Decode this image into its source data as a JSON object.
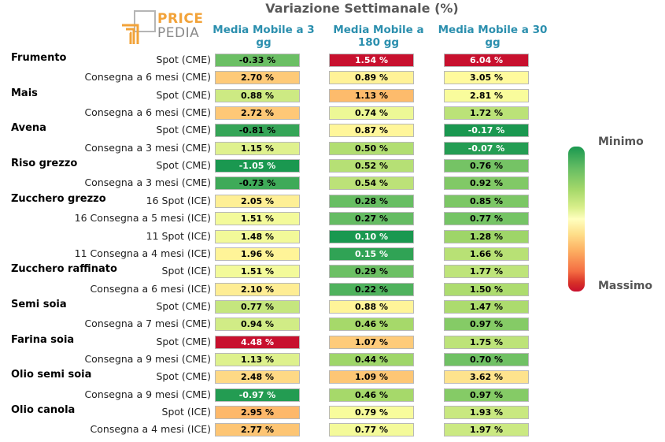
{
  "logo": {
    "line1": "PRICE",
    "line2": "PEDIA"
  },
  "title": "Variazione Settimanale (%)",
  "colors": {
    "accent": "#2b8fae",
    "logo_orange": "#f2a33a",
    "scale_min": "#1a9850",
    "scale_max": "#c8102e"
  },
  "legend": {
    "min_label": "Minimo",
    "max_label": "Massimo"
  },
  "chart_data": {
    "type": "table",
    "columns": [
      "Media Mobile a 3 gg",
      "Media Mobile a 180 gg",
      "Media Mobile a 30 gg"
    ],
    "groups": [
      {
        "name": "Frumento",
        "rows": [
          {
            "label": "Spot (CME)",
            "values": [
              "-0.33 %",
              "1.54 %",
              "6.04 %"
            ]
          },
          {
            "label": "Consegna a 6 mesi (CME)",
            "values": [
              "2.70 %",
              "0.89 %",
              "3.05 %"
            ]
          }
        ]
      },
      {
        "name": "Mais",
        "rows": [
          {
            "label": "Spot (CME)",
            "values": [
              "0.88 %",
              "1.13 %",
              "2.81 %"
            ]
          },
          {
            "label": "Consegna a 6 mesi (CME)",
            "values": [
              "2.72 %",
              "0.74 %",
              "1.72 %"
            ]
          }
        ]
      },
      {
        "name": "Avena",
        "rows": [
          {
            "label": "Spot (CME)",
            "values": [
              "-0.81 %",
              "0.87 %",
              "-0.17 %"
            ]
          },
          {
            "label": "Consegna a 3 mesi (CME)",
            "values": [
              "1.15 %",
              "0.50 %",
              "-0.07 %"
            ]
          }
        ]
      },
      {
        "name": "Riso grezzo",
        "rows": [
          {
            "label": "Spot (CME)",
            "values": [
              "-1.05 %",
              "0.52 %",
              "0.76 %"
            ]
          },
          {
            "label": "Consegna a 3 mesi (CME)",
            "values": [
              "-0.73 %",
              "0.54 %",
              "0.92 %"
            ]
          }
        ]
      },
      {
        "name": "Zucchero grezzo",
        "rows": [
          {
            "label": "16 Spot (ICE)",
            "values": [
              "2.05 %",
              "0.28 %",
              "0.85 %"
            ]
          },
          {
            "label": "16 Consegna a 5 mesi (ICE)",
            "values": [
              "1.51 %",
              "0.27 %",
              "0.77 %"
            ]
          },
          {
            "label": "11 Spot (ICE)",
            "values": [
              "1.48 %",
              "0.10 %",
              "1.28 %"
            ]
          },
          {
            "label": "11 Consegna a 4 mesi (ICE)",
            "values": [
              "1.96 %",
              "0.15 %",
              "1.66 %"
            ]
          }
        ]
      },
      {
        "name": "Zucchero raffinato",
        "rows": [
          {
            "label": "Spot (ICE)",
            "values": [
              "1.51 %",
              "0.29 %",
              "1.77 %"
            ]
          },
          {
            "label": "Consegna a 6 mesi (ICE)",
            "values": [
              "2.10 %",
              "0.22 %",
              "1.50 %"
            ]
          }
        ]
      },
      {
        "name": "Semi soia",
        "rows": [
          {
            "label": "Spot (CME)",
            "values": [
              "0.77 %",
              "0.88 %",
              "1.47 %"
            ]
          },
          {
            "label": "Consegna a 7 mesi (CME)",
            "values": [
              "0.94 %",
              "0.46 %",
              "0.97 %"
            ]
          }
        ]
      },
      {
        "name": "Farina soia",
        "rows": [
          {
            "label": "Spot (CME)",
            "values": [
              "4.48 %",
              "1.07 %",
              "1.75 %"
            ]
          },
          {
            "label": "Consegna a 9 mesi (CME)",
            "values": [
              "1.13 %",
              "0.44 %",
              "0.70 %"
            ]
          }
        ]
      },
      {
        "name": "Olio semi soia",
        "rows": [
          {
            "label": "Spot (CME)",
            "values": [
              "2.48 %",
              "1.09 %",
              "3.62 %"
            ]
          },
          {
            "label": "Consegna a 9 mesi (CME)",
            "values": [
              "-0.97 %",
              "0.46 %",
              "0.97 %"
            ]
          }
        ]
      },
      {
        "name": "Olio canola",
        "rows": [
          {
            "label": "Spot (ICE)",
            "values": [
              "2.95 %",
              "0.79 %",
              "1.93 %"
            ]
          },
          {
            "label": "Consegna a 4 mesi (ICE)",
            "values": [
              "2.77 %",
              "0.77 %",
              "1.97 %"
            ]
          }
        ]
      }
    ]
  }
}
